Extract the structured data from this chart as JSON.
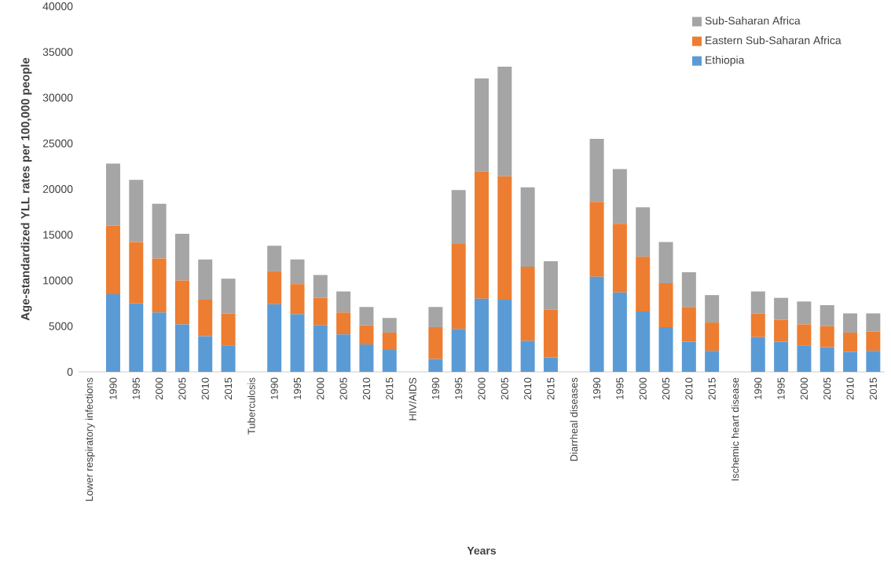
{
  "chart_data": {
    "type": "bar",
    "stacked": true,
    "xlabel": "Years",
    "ylabel": "Age-standardized YLL rates per 100,000 people",
    "categories": [
      "Lower respiratory infections",
      "1990",
      "1995",
      "2000",
      "2005",
      "2010",
      "2015",
      "Tuberculosis",
      "1990",
      "1995",
      "2000",
      "2005",
      "2010",
      "2015",
      "HIV/AIDS",
      "1990",
      "1995",
      "2000",
      "2005",
      "2010",
      "2015",
      "Diarrheal diseases",
      "1990",
      "1995",
      "2000",
      "2005",
      "2010",
      "2015",
      "Ischemic heart disease",
      "1990",
      "1995",
      "2000",
      "2005",
      "2010",
      "2015"
    ],
    "series": [
      {
        "name": "Ethiopia",
        "color": "#5b9bd5",
        "values": [
          null,
          8500,
          7500,
          6500,
          5200,
          3900,
          2900,
          null,
          7400,
          6300,
          5100,
          4100,
          3000,
          2400,
          null,
          1400,
          4700,
          8000,
          7900,
          3400,
          1600,
          null,
          10400,
          8700,
          6600,
          4900,
          3300,
          2300,
          null,
          3800,
          3300,
          2900,
          2700,
          2200,
          2300
        ]
      },
      {
        "name": "Eastern Sub-Saharan Africa",
        "color": "#ed7d31",
        "values": [
          null,
          7500,
          6700,
          5900,
          4800,
          4000,
          3500,
          null,
          3600,
          3300,
          3000,
          2400,
          2100,
          1900,
          null,
          3500,
          9300,
          13900,
          13500,
          8100,
          5200,
          null,
          8200,
          7500,
          6000,
          4800,
          3800,
          3100,
          null,
          2600,
          2400,
          2300,
          2300,
          2100,
          2100
        ]
      },
      {
        "name": "Sub-Saharan Africa",
        "color": "#a5a5a5",
        "values": [
          null,
          6800,
          6800,
          6000,
          5100,
          4400,
          3800,
          null,
          2800,
          2700,
          2500,
          2300,
          2000,
          1600,
          null,
          2200,
          5900,
          10200,
          12000,
          8700,
          5300,
          null,
          6900,
          6000,
          5400,
          4500,
          3800,
          3000,
          null,
          2400,
          2400,
          2500,
          2300,
          2100,
          2000
        ]
      }
    ],
    "ylim": [
      0,
      40000
    ],
    "yticks": [
      0,
      5000,
      10000,
      15000,
      20000,
      25000,
      30000,
      35000,
      40000
    ],
    "legend": "top right"
  }
}
